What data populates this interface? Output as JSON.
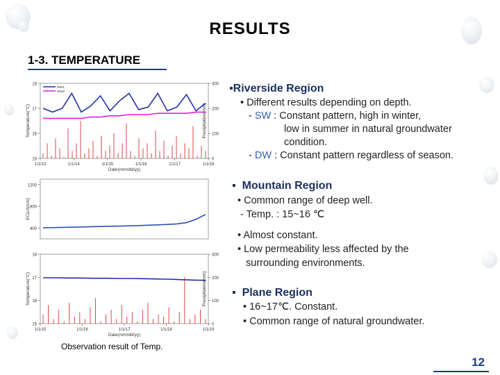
{
  "title": "RESULTS",
  "section": "1-3. TEMPERATURE",
  "caption": "Observation result of Temp.",
  "page_number": "12",
  "riverside": {
    "heading": "Riverside Region",
    "b1": "Different results depending on depth.",
    "sw_label": "SW",
    "sw1": ": Constant pattern, high in winter,",
    "sw2": "low in summer in natural groundwater",
    "sw3": "condition.",
    "dw_label": "DW",
    "dw1": ": Constant pattern regardless of season."
  },
  "mountain": {
    "heading": "Mountain Region",
    "b1": "Common range of deep well.",
    "b2": "Temp. : 15~16 ℃",
    "b3": "Almost constant.",
    "b4": "Low permeability less affected by the",
    "b5": "surrounding environments."
  },
  "plane": {
    "heading": "Plane Region",
    "b1": "16~17℃. Constant.",
    "b2": "Common range of natural groundwater."
  },
  "chart_data": [
    {
      "type": "line",
      "name": "riverside",
      "xlabel": "Date(mm/dd/yy)",
      "ylabel": "Temperature(°C)",
      "y2label": "Precipitation(mm)",
      "x_ticks": [
        "1/1/13",
        "1/1/14",
        "1/1/15",
        "1/1/16",
        "1/1/17",
        "1/1/18"
      ],
      "y_ticks": [
        "18",
        "17",
        "16",
        "15"
      ],
      "y2_ticks": [
        "300",
        "200",
        "100",
        "0"
      ],
      "ylim": [
        15,
        18
      ],
      "y2lim": [
        0,
        300
      ],
      "legend": [
        "WW1",
        "WW2"
      ],
      "series": [
        {
          "name": "WW1",
          "color": "#1f2fa8",
          "values": [
            17.0,
            16.85,
            17.0,
            17.6,
            16.85,
            17.1,
            17.5,
            16.9,
            17.3,
            17.6,
            16.95,
            17.05,
            17.6,
            16.9,
            17.05,
            17.55,
            16.9,
            17.2
          ]
        },
        {
          "name": "WW2",
          "color": "#e01fd8",
          "values": [
            16.6,
            16.6,
            16.6,
            16.6,
            16.6,
            16.65,
            16.65,
            16.7,
            16.7,
            16.75,
            16.75,
            16.75,
            16.8,
            16.8,
            16.8,
            16.8,
            16.85,
            16.85
          ]
        }
      ],
      "precip_color": "#d83030",
      "precipitation": [
        20,
        60,
        10,
        80,
        40,
        5,
        120,
        30,
        60,
        150,
        20,
        40,
        70,
        10,
        90,
        30,
        50,
        100,
        20,
        60,
        140,
        30,
        10,
        80,
        40,
        60,
        20,
        110,
        30,
        70,
        10,
        50,
        90,
        20,
        60,
        40,
        130,
        10,
        50,
        30
      ]
    },
    {
      "type": "line",
      "name": "mountain",
      "xlabel": "",
      "ylabel": "EC(uS/cm)",
      "y_ticks": [
        "1200",
        "800",
        "400"
      ],
      "ylim": [
        200,
        1300
      ],
      "series": [
        {
          "name": "EC",
          "color": "#2a4fb0",
          "values": [
            405,
            408,
            412,
            415,
            420,
            424,
            428,
            432,
            436,
            440,
            446,
            452,
            458,
            466,
            476,
            500,
            560,
            650
          ]
        }
      ]
    },
    {
      "type": "line",
      "name": "plane",
      "xlabel": "Date(mm/dd/yy)",
      "ylabel": "Temperature(°C)",
      "y2label": "Precipitation(mm)",
      "x_ticks": [
        "1/1/15",
        "1/1/16",
        "1/1/17",
        "1/1/18",
        "1/1/19"
      ],
      "y_ticks": [
        "18",
        "17",
        "16",
        "15"
      ],
      "y2_ticks": [
        "300",
        "200",
        "100",
        "0"
      ],
      "ylim": [
        15,
        18
      ],
      "y2lim": [
        0,
        300
      ],
      "series": [
        {
          "name": "Temp",
          "color": "#1f2fa8",
          "values": [
            16.98,
            16.98,
            16.97,
            16.97,
            16.96,
            16.96,
            16.95,
            16.95,
            16.94,
            16.93,
            16.92,
            16.9,
            16.88,
            16.87
          ]
        }
      ],
      "precip_color": "#d83030",
      "precipitation": [
        40,
        80,
        20,
        60,
        10,
        90,
        30,
        50,
        20,
        70,
        110,
        10,
        40,
        60,
        20,
        80,
        30,
        50,
        10,
        60,
        90,
        20,
        40,
        30,
        70,
        10,
        50,
        200,
        20,
        40,
        60,
        20
      ]
    }
  ]
}
